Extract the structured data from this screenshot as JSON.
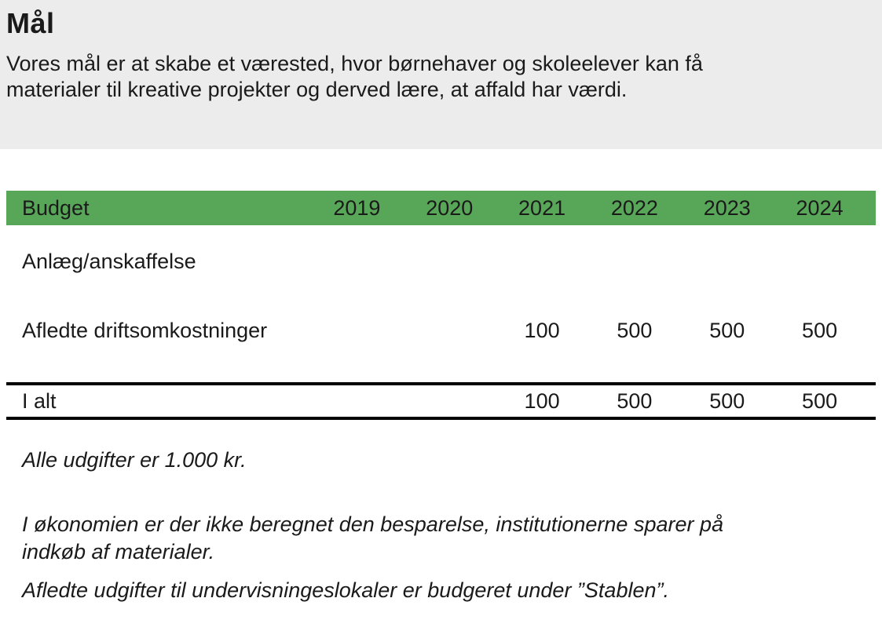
{
  "page": {
    "title": "Mål",
    "intro_lines": [
      "Vores mål er at skabe et værested, hvor børnehaver og skoleelever kan få",
      "materialer til kreative projekter og derved lære, at affald har værdi."
    ]
  },
  "table": {
    "header": {
      "label": "Budget",
      "years": [
        "2019",
        "2020",
        "2021",
        "2022",
        "2023",
        "2024"
      ]
    },
    "rows": [
      {
        "label": "Anlæg/anskaffelse",
        "values": [
          "",
          "",
          "",
          "",
          "",
          ""
        ]
      },
      {
        "label": "Afledte driftsomkostninger",
        "values": [
          "",
          "",
          "100",
          "500",
          "500",
          "500"
        ]
      }
    ],
    "total": {
      "label": "I alt",
      "values": [
        "",
        "",
        "100",
        "500",
        "500",
        "500"
      ]
    }
  },
  "notes": {
    "unit_note": "Alle udgifter er 1.000 kr.",
    "savings_note_lines": [
      "I økonomien er der ikke beregnet den besparelse, institutionerne sparer på",
      "indkøb af materialer."
    ],
    "premises_note": "Afledte udgifter til undervisningeslokaler er budgeret under ”Stablen”."
  },
  "colors": {
    "header_green": "#58a758",
    "intro_bg": "#ececec",
    "text": "#1a1a1a"
  }
}
